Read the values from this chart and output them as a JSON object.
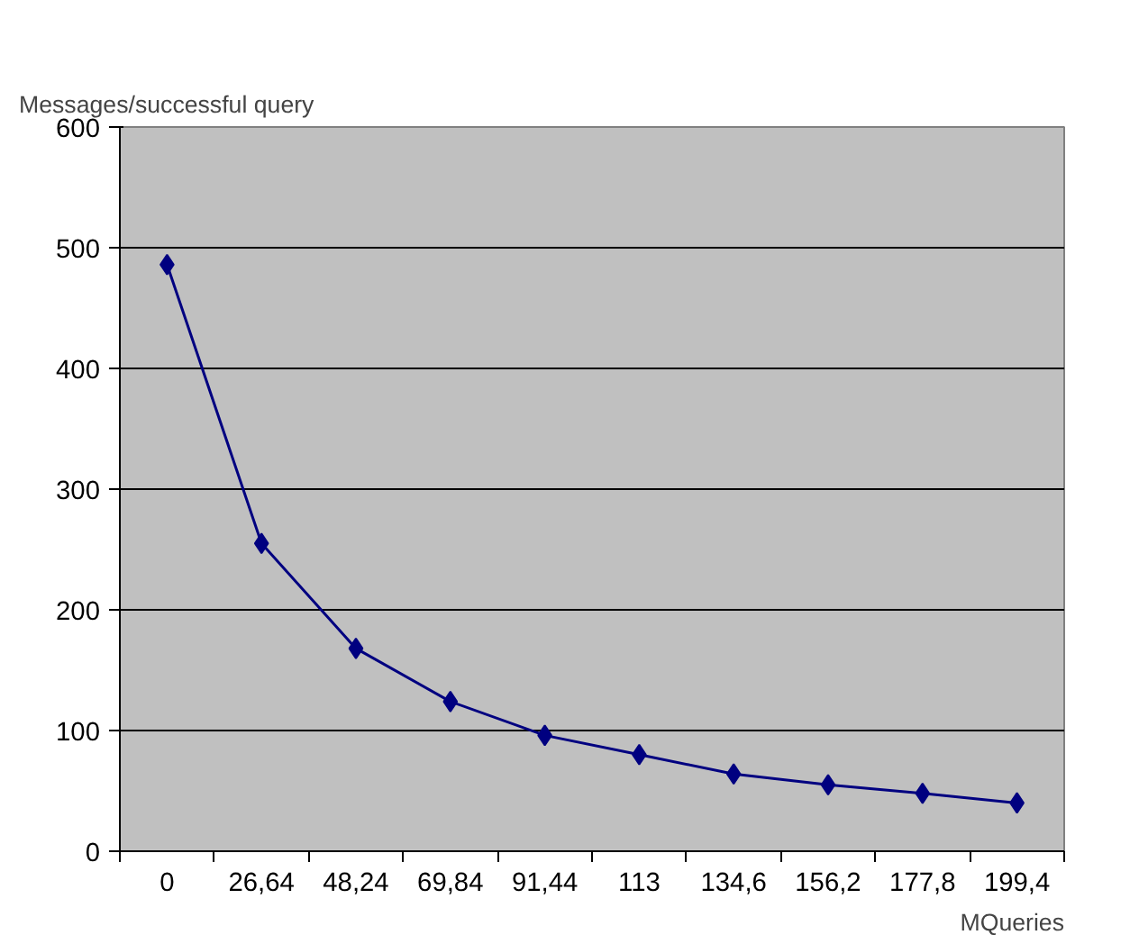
{
  "chart_data": {
    "type": "line",
    "ylabel": "Messages/successful query",
    "xlabel": "MQueries",
    "categories": [
      "0",
      "26,64",
      "48,24",
      "69,84",
      "91,44",
      "113",
      "134,6",
      "156,2",
      "177,8",
      "199,4"
    ],
    "series": [
      {
        "color": "#000080",
        "values": [
          486,
          255,
          168,
          124,
          96,
          80,
          64,
          55,
          48,
          40
        ]
      }
    ],
    "ylim": [
      0,
      600
    ],
    "yticks": [
      0,
      100,
      200,
      300,
      400,
      500,
      600
    ],
    "grid": "y",
    "marker": "diamond",
    "line_style": "solid"
  }
}
